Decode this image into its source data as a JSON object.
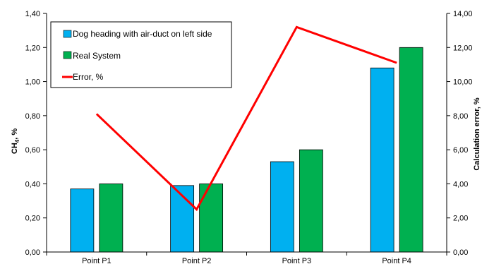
{
  "chart_data": {
    "type": "bar",
    "categories": [
      "Point P1",
      "Point P2",
      "Point P3",
      "Point P4"
    ],
    "series": [
      {
        "name": "Dog heading with air-duct on left side",
        "type": "bar",
        "axis": "left",
        "color": "#00B0F0",
        "values": [
          0.37,
          0.39,
          0.53,
          1.08
        ]
      },
      {
        "name": "Real System",
        "type": "bar",
        "axis": "left",
        "color": "#00B050",
        "values": [
          0.4,
          0.4,
          0.6,
          1.2
        ]
      },
      {
        "name": "Error, %",
        "type": "line",
        "axis": "right",
        "color": "#FF0000",
        "values": [
          8.1,
          2.5,
          13.2,
          11.1
        ]
      }
    ],
    "ylabel_main": "CH",
    "ylabel_sub": "4",
    "ylabel_unit": ", %",
    "y2label": "Calculation error, %",
    "ylim": [
      0,
      1.4
    ],
    "y2lim": [
      0,
      14
    ],
    "yticks": [
      "0,00",
      "0,20",
      "0,40",
      "0,60",
      "0,80",
      "1,00",
      "1,20",
      "1,40"
    ],
    "y2ticks": [
      "0,00",
      "2,00",
      "4,00",
      "6,00",
      "8,00",
      "10,00",
      "12,00",
      "14,00"
    ],
    "grid": false,
    "legend_position": "top-left"
  }
}
